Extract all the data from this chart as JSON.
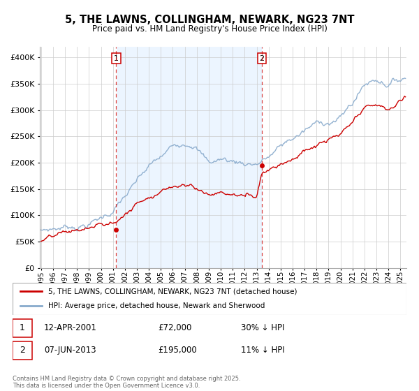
{
  "title": "5, THE LAWNS, COLLINGHAM, NEWARK, NG23 7NT",
  "subtitle": "Price paid vs. HM Land Registry's House Price Index (HPI)",
  "legend_entry1": "5, THE LAWNS, COLLINGHAM, NEWARK, NG23 7NT (detached house)",
  "legend_entry2": "HPI: Average price, detached house, Newark and Sherwood",
  "footnote": "Contains HM Land Registry data © Crown copyright and database right 2025.\nThis data is licensed under the Open Government Licence v3.0.",
  "marker1_date": "12-APR-2001",
  "marker1_price": "£72,000",
  "marker1_hpi": "30% ↓ HPI",
  "marker1_x": 2001.28,
  "marker1_y": 72000,
  "marker2_date": "07-JUN-2013",
  "marker2_price": "£195,000",
  "marker2_hpi": "11% ↓ HPI",
  "marker2_x": 2013.43,
  "marker2_y": 195000,
  "red_color": "#cc0000",
  "blue_color": "#88aacc",
  "background_shading": "#ddeeff",
  "ylim": [
    0,
    420000
  ],
  "xlim_start": 1994.9,
  "xlim_end": 2025.5
}
